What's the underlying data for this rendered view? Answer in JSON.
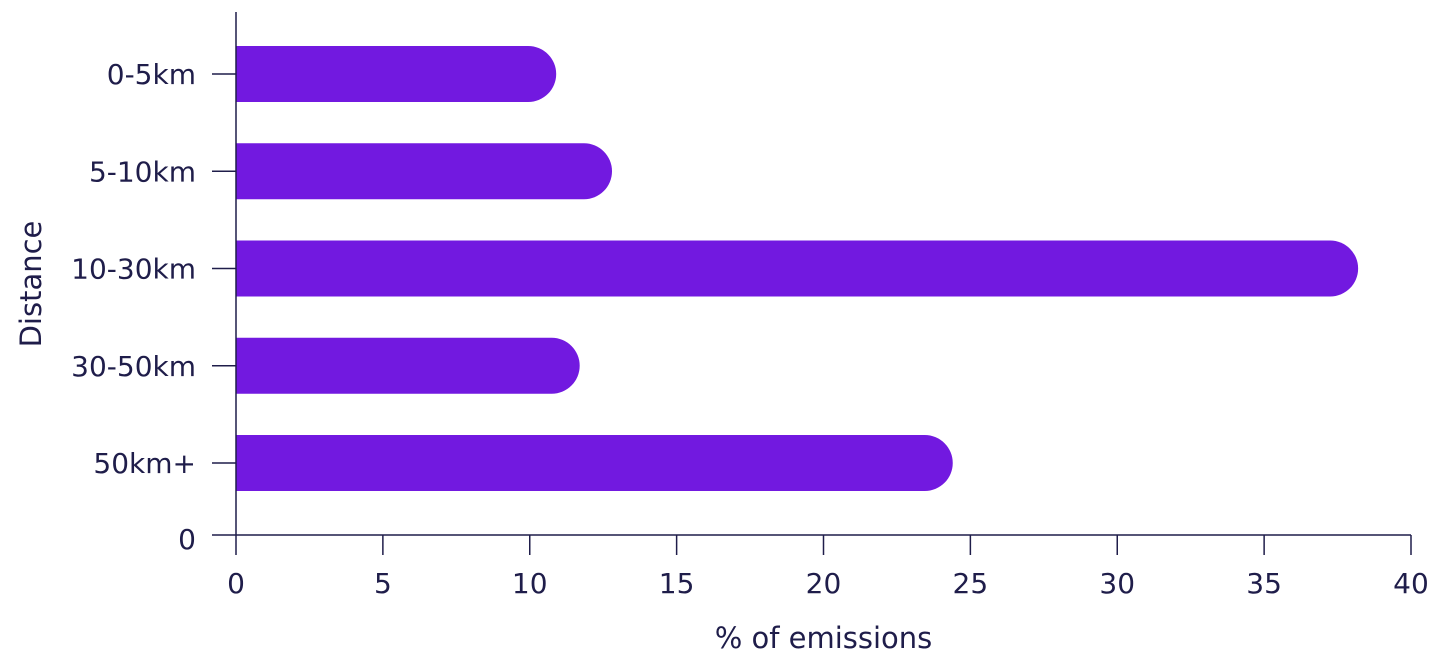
{
  "chart_data": {
    "type": "bar",
    "orientation": "horizontal",
    "categories": [
      "0-5km",
      "5-10km",
      "10-30km",
      "30-50km",
      "50km+"
    ],
    "values": [
      10.9,
      12.8,
      38.2,
      11.7,
      24.4
    ],
    "xlabel": "% of emissions",
    "ylabel": "Distance",
    "xlim": [
      0,
      40
    ],
    "xticks": [
      "0",
      "5",
      "10",
      "15",
      "20",
      "25",
      "30",
      "35",
      "40"
    ],
    "y_zero_label": "0",
    "grid": false,
    "bar_color": "#7219E0"
  }
}
